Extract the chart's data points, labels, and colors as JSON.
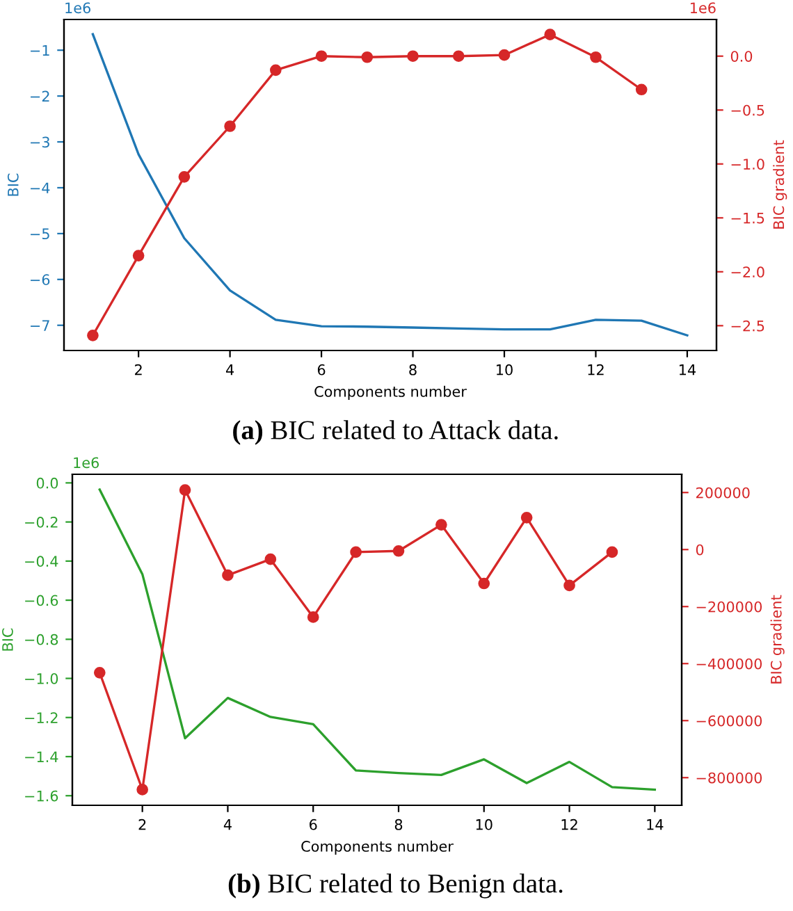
{
  "chart_data": [
    {
      "type": "line",
      "xlabel": "Components number",
      "ylabel": "BIC",
      "y2label": "BIC gradient",
      "x": [
        1,
        2,
        3,
        4,
        5,
        6,
        7,
        8,
        9,
        10,
        11,
        12,
        13,
        14
      ],
      "series": [
        {
          "color": "#1f77b4",
          "marker": "none",
          "values": [
            -0.65,
            -3.27,
            -5.1,
            -6.24,
            -6.88,
            -7.02,
            -7.03,
            -7.05,
            -7.07,
            -7.09,
            -7.09,
            -6.88,
            -6.9,
            -7.22
          ]
        },
        {
          "color": "#d62728",
          "marker": "circle",
          "axis": "y2",
          "x": [
            1,
            2,
            3,
            4,
            5,
            6,
            7,
            8,
            9,
            10,
            11,
            12,
            13
          ],
          "values": [
            -2.59,
            -1.85,
            -1.12,
            -0.65,
            -0.13,
            0,
            -0.01,
            0,
            0,
            0.01,
            0.2,
            -0.01,
            -0.31
          ]
        }
      ],
      "xlim": [
        0.37,
        14.64
      ],
      "xticks": [
        2,
        4,
        6,
        8,
        10,
        12,
        14
      ],
      "ylim": [
        -7.55,
        -0.33
      ],
      "yticks": [
        {
          "value": -1,
          "label": "−1"
        },
        {
          "value": -2,
          "label": "−2"
        },
        {
          "value": -3,
          "label": "−3"
        },
        {
          "value": -4,
          "label": "−4"
        },
        {
          "value": -5,
          "label": "−5"
        },
        {
          "value": -6,
          "label": "−6"
        },
        {
          "value": -7,
          "label": "−7"
        }
      ],
      "y2lim": [
        -2.73,
        0.34
      ],
      "y2ticks": [
        {
          "value": 0,
          "label": "0.0"
        },
        {
          "value": -0.5,
          "label": "−0.5"
        },
        {
          "value": -1,
          "label": "−1.0"
        },
        {
          "value": -1.5,
          "label": "−1.5"
        },
        {
          "value": -2,
          "label": "−2.0"
        },
        {
          "value": -2.5,
          "label": "−2.5"
        }
      ],
      "grid": false,
      "legend": false,
      "annotations": [
        "1e6",
        "1e6",
        "(a) BIC related to Attack data."
      ]
    },
    {
      "type": "line",
      "xlabel": "Components number",
      "ylabel": "BIC",
      "y2label": "BIC gradient",
      "x": [
        1,
        2,
        3,
        4,
        5,
        6,
        7,
        8,
        9,
        10,
        11,
        12,
        13,
        14
      ],
      "series": [
        {
          "color": "#2ca02c",
          "marker": "none",
          "values": [
            -0.034,
            -0.467,
            -1.306,
            -1.1,
            -1.197,
            -1.234,
            -1.471,
            -1.484,
            -1.494,
            -1.414,
            -1.535,
            -1.427,
            -1.556,
            -1.569
          ]
        },
        {
          "color": "#d62728",
          "marker": "circle",
          "axis": "y2",
          "x": [
            1,
            2,
            3,
            4,
            5,
            6,
            7,
            8,
            9,
            10,
            11,
            12,
            13
          ],
          "values": [
            -432000,
            -842000,
            209000,
            -90000,
            -34000,
            -237000,
            -9000,
            -5000,
            87000,
            -119000,
            112000,
            -126000,
            -9000
          ]
        }
      ],
      "xlim": [
        0.36,
        14.63
      ],
      "xticks": [
        2,
        4,
        6,
        8,
        10,
        12,
        14
      ],
      "ylim": [
        -1.649,
        0.044
      ],
      "yticks": [
        {
          "value": 0,
          "label": "0.0"
        },
        {
          "value": -0.2,
          "label": "−0.2"
        },
        {
          "value": -0.4,
          "label": "−0.4"
        },
        {
          "value": -0.6,
          "label": "−0.6"
        },
        {
          "value": -0.8,
          "label": "−0.8"
        },
        {
          "value": -1,
          "label": "−1.0"
        },
        {
          "value": -1.2,
          "label": "−1.2"
        },
        {
          "value": -1.4,
          "label": "−1.4"
        },
        {
          "value": -1.6,
          "label": "−1.6"
        }
      ],
      "y2lim": [
        -897000,
        264000
      ],
      "y2ticks": [
        {
          "value": 200000,
          "label": "200000"
        },
        {
          "value": 0,
          "label": "0"
        },
        {
          "value": -200000,
          "label": "−200000"
        },
        {
          "value": -400000,
          "label": "−400000"
        },
        {
          "value": -600000,
          "label": "−600000"
        },
        {
          "value": -800000,
          "label": "−800000"
        }
      ],
      "grid": false,
      "legend": false,
      "annotations": [
        "1e6",
        "(b) BIC related to Benign data."
      ]
    }
  ]
}
